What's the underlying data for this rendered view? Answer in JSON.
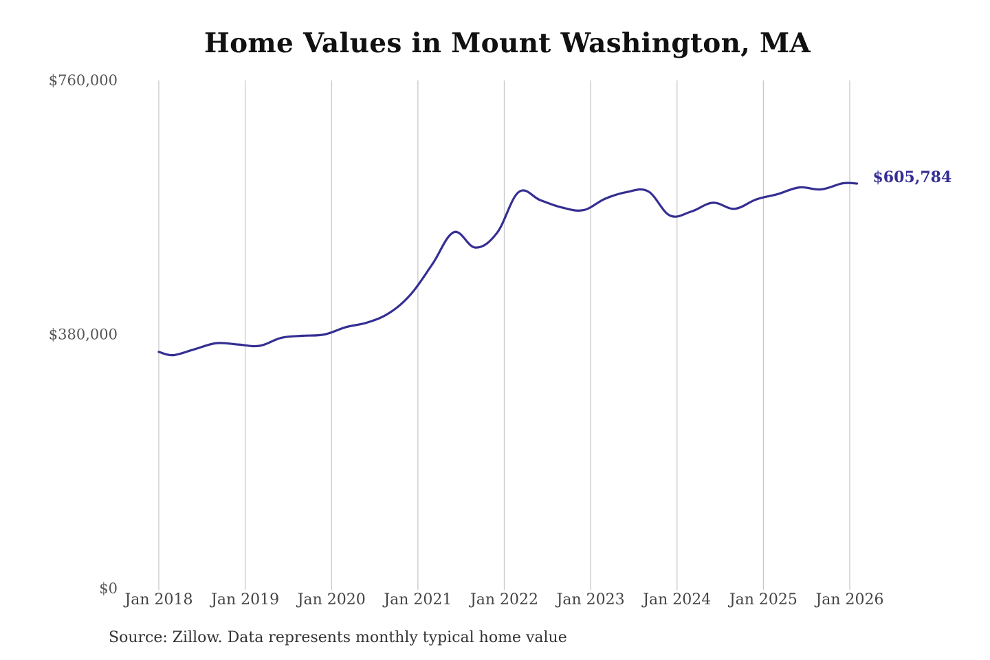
{
  "source_note": "Source: Zillow. Data represents monthly typical home value",
  "colors": {
    "line": "#352e92",
    "end_label": "#352e92",
    "gridline": "#c8c8c8",
    "title": "#111111",
    "ticks": "#555555"
  },
  "chart_data": {
    "type": "line",
    "title": "Home Values in Mount Washington, MA",
    "xlabel": "",
    "ylabel": "",
    "ylim": [
      0,
      760000
    ],
    "xlim": [
      "2018-01",
      "2026-02"
    ],
    "y_ticks": [
      {
        "value": 0,
        "label": "$0"
      },
      {
        "value": 380000,
        "label": "$380,000"
      },
      {
        "value": 760000,
        "label": "$760,000"
      }
    ],
    "x_ticks": [
      {
        "value": "2018-01",
        "label": "Jan 2018"
      },
      {
        "value": "2019-01",
        "label": "Jan 2019"
      },
      {
        "value": "2020-01",
        "label": "Jan 2020"
      },
      {
        "value": "2021-01",
        "label": "Jan 2021"
      },
      {
        "value": "2022-01",
        "label": "Jan 2022"
      },
      {
        "value": "2023-01",
        "label": "Jan 2023"
      },
      {
        "value": "2024-01",
        "label": "Jan 2024"
      },
      {
        "value": "2025-01",
        "label": "Jan 2025"
      },
      {
        "value": "2026-01",
        "label": "Jan 2026"
      }
    ],
    "grid": "vertical",
    "legend": "none",
    "end_label": "$605,784",
    "series": [
      {
        "x": [
          "2018-01",
          "2018-03",
          "2018-06",
          "2018-09",
          "2018-12",
          "2019-03",
          "2019-06",
          "2019-09",
          "2019-12",
          "2020-03",
          "2020-06",
          "2020-09",
          "2020-12",
          "2021-03",
          "2021-06",
          "2021-09",
          "2021-12",
          "2022-03",
          "2022-06",
          "2022-09",
          "2022-12",
          "2023-03",
          "2023-06",
          "2023-09",
          "2023-12",
          "2024-03",
          "2024-06",
          "2024-09",
          "2024-12",
          "2025-03",
          "2025-06",
          "2025-09",
          "2025-12",
          "2026-02"
        ],
        "y": [
          354000,
          349000,
          358000,
          367000,
          365000,
          363000,
          375000,
          378000,
          380000,
          391000,
          398000,
          412000,
          440000,
          485000,
          533000,
          510000,
          532000,
          593000,
          581000,
          570000,
          566000,
          583000,
          593000,
          594000,
          558000,
          564000,
          577000,
          568000,
          582000,
          590000,
          600000,
          597000,
          606000,
          605784
        ]
      }
    ]
  }
}
